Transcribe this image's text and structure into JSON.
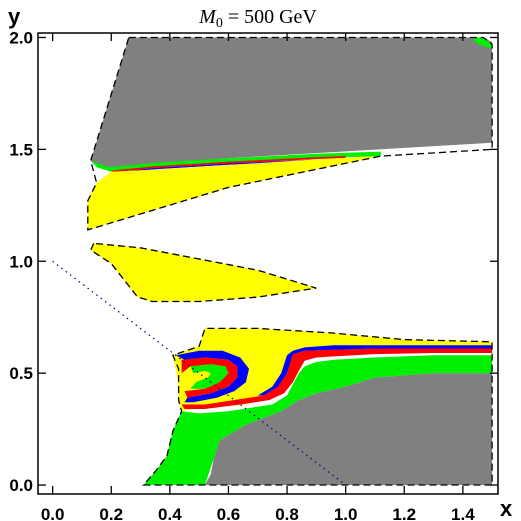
{
  "chart_data": {
    "type": "area",
    "title": "M0 = 500 GeV",
    "title_parts": {
      "symbol": "M",
      "subscript": "0",
      "rest": " = 500 GeV"
    },
    "xlabel": "x",
    "ylabel": "y",
    "xlim": [
      -0.05,
      1.52
    ],
    "ylim": [
      -0.04,
      2.02
    ],
    "x_ticks": [
      0.0,
      0.2,
      0.4,
      0.6,
      0.8,
      1.0,
      1.2,
      1.4
    ],
    "x_tick_labels": [
      "0.0",
      "0.2",
      "0.4",
      "0.6",
      "0.8",
      "1.0",
      "1.2",
      "1.4"
    ],
    "y_ticks": [
      0.0,
      0.5,
      1.0,
      1.5,
      2.0
    ],
    "y_tick_labels": [
      "0.0",
      "0.5",
      "1.0",
      "1.5",
      "2.0"
    ],
    "grid": false,
    "legend": "none",
    "colors": {
      "gray": "#808080",
      "green": "#00ee00",
      "yellow": "#ffff00",
      "red": "#ff0000",
      "blue": "#0000ff",
      "boundary": "#000000",
      "dotted": "#000080"
    },
    "regions": [
      {
        "id": "upper-gray",
        "color": "gray",
        "polygon": [
          [
            0.26,
            2.0
          ],
          [
            1.47,
            2.0
          ],
          [
            1.5,
            1.98
          ],
          [
            1.5,
            1.53
          ],
          [
            0.6,
            1.46
          ],
          [
            0.35,
            1.43
          ],
          [
            0.19,
            1.41
          ],
          [
            0.16,
            1.43
          ],
          [
            0.13,
            1.45
          ]
        ]
      },
      {
        "id": "upper-green-top-right",
        "color": "green",
        "polygon": [
          [
            1.43,
            2.0
          ],
          [
            1.47,
            2.0
          ],
          [
            1.5,
            1.97
          ],
          [
            1.5,
            1.95
          ],
          [
            1.45,
            1.97
          ]
        ]
      },
      {
        "id": "upper-green-strip",
        "color": "green",
        "polygon": [
          [
            0.13,
            1.45
          ],
          [
            0.19,
            1.42
          ],
          [
            0.35,
            1.44
          ],
          [
            0.6,
            1.46
          ],
          [
            0.9,
            1.48
          ],
          [
            1.12,
            1.49
          ],
          [
            1.12,
            1.47
          ],
          [
            0.9,
            1.46
          ],
          [
            0.6,
            1.44
          ],
          [
            0.35,
            1.42
          ],
          [
            0.2,
            1.4
          ],
          [
            0.15,
            1.42
          ]
        ]
      },
      {
        "id": "upper-red-strip",
        "color": "red",
        "polygon": [
          [
            0.2,
            1.405
          ],
          [
            0.35,
            1.425
          ],
          [
            0.6,
            1.445
          ],
          [
            0.9,
            1.465
          ],
          [
            1.0,
            1.47
          ],
          [
            1.0,
            1.462
          ],
          [
            0.9,
            1.457
          ],
          [
            0.6,
            1.437
          ],
          [
            0.35,
            1.417
          ],
          [
            0.21,
            1.397
          ]
        ]
      },
      {
        "id": "upper-blue-strip",
        "color": "blue",
        "polygon": [
          [
            0.21,
            1.397
          ],
          [
            0.35,
            1.417
          ],
          [
            0.6,
            1.437
          ],
          [
            0.9,
            1.455
          ],
          [
            0.9,
            1.449
          ],
          [
            0.6,
            1.431
          ],
          [
            0.35,
            1.411
          ],
          [
            0.22,
            1.391
          ]
        ]
      },
      {
        "id": "upper-yellow",
        "color": "yellow",
        "polygon": [
          [
            0.2,
            1.4
          ],
          [
            0.35,
            1.41
          ],
          [
            0.6,
            1.43
          ],
          [
            0.9,
            1.455
          ],
          [
            1.12,
            1.47
          ],
          [
            0.6,
            1.33
          ],
          [
            0.12,
            1.14
          ],
          [
            0.12,
            1.27
          ],
          [
            0.15,
            1.35
          ]
        ]
      },
      {
        "id": "middle-yellow",
        "color": "yellow",
        "polygon": [
          [
            0.14,
            1.08
          ],
          [
            0.13,
            1.05
          ],
          [
            0.2,
            0.99
          ],
          [
            0.29,
            0.84
          ],
          [
            0.34,
            0.82
          ],
          [
            0.5,
            0.82
          ],
          [
            0.7,
            0.84
          ],
          [
            0.9,
            0.88
          ],
          [
            0.7,
            0.96
          ],
          [
            0.3,
            1.06
          ]
        ]
      },
      {
        "id": "lower-gray",
        "color": "gray",
        "polygon": [
          [
            0.66,
            0.27
          ],
          [
            0.72,
            0.3
          ],
          [
            0.78,
            0.33
          ],
          [
            0.84,
            0.38
          ],
          [
            0.9,
            0.41
          ],
          [
            1.0,
            0.44
          ],
          [
            1.1,
            0.48
          ],
          [
            1.2,
            0.49
          ],
          [
            1.3,
            0.5
          ],
          [
            1.5,
            0.5
          ],
          [
            1.5,
            0.0
          ],
          [
            0.52,
            0.0
          ],
          [
            0.54,
            0.05
          ],
          [
            0.55,
            0.12
          ],
          [
            0.57,
            0.2
          ]
        ]
      },
      {
        "id": "lower-green",
        "color": "green",
        "polygon": [
          [
            0.31,
            0.0
          ],
          [
            0.52,
            0.0
          ],
          [
            0.55,
            0.12
          ],
          [
            0.57,
            0.2
          ],
          [
            0.66,
            0.27
          ],
          [
            0.72,
            0.3
          ],
          [
            0.78,
            0.33
          ],
          [
            0.84,
            0.38
          ],
          [
            0.9,
            0.41
          ],
          [
            1.0,
            0.44
          ],
          [
            1.1,
            0.48
          ],
          [
            1.2,
            0.49
          ],
          [
            1.3,
            0.5
          ],
          [
            1.5,
            0.5
          ],
          [
            1.5,
            0.58
          ],
          [
            1.3,
            0.58
          ],
          [
            1.1,
            0.57
          ],
          [
            0.96,
            0.56
          ],
          [
            0.9,
            0.55
          ],
          [
            0.86,
            0.53
          ],
          [
            0.84,
            0.5
          ],
          [
            0.82,
            0.45
          ],
          [
            0.8,
            0.4
          ],
          [
            0.75,
            0.36
          ],
          [
            0.6,
            0.33
          ],
          [
            0.5,
            0.32
          ],
          [
            0.44,
            0.33
          ],
          [
            0.41,
            0.24
          ],
          [
            0.39,
            0.13
          ],
          [
            0.35,
            0.06
          ]
        ]
      },
      {
        "id": "lower-yellow",
        "color": "yellow",
        "polygon": [
          [
            0.41,
            0.58
          ],
          [
            0.5,
            0.62
          ],
          [
            0.52,
            0.7
          ],
          [
            0.7,
            0.7
          ],
          [
            0.95,
            0.68
          ],
          [
            1.2,
            0.65
          ],
          [
            1.5,
            0.64
          ],
          [
            1.5,
            0.62
          ],
          [
            1.3,
            0.62
          ],
          [
            1.1,
            0.61
          ],
          [
            0.96,
            0.6
          ],
          [
            0.9,
            0.6
          ],
          [
            0.86,
            0.58
          ],
          [
            0.84,
            0.55
          ],
          [
            0.82,
            0.5
          ],
          [
            0.8,
            0.45
          ],
          [
            0.76,
            0.4
          ],
          [
            0.66,
            0.36
          ],
          [
            0.56,
            0.35
          ],
          [
            0.48,
            0.34
          ],
          [
            0.44,
            0.33
          ],
          [
            0.43,
            0.38
          ],
          [
            0.43,
            0.45
          ],
          [
            0.42,
            0.52
          ]
        ]
      },
      {
        "id": "lower-red-band",
        "color": "red",
        "polygon": [
          [
            0.82,
            0.585
          ],
          [
            0.86,
            0.6
          ],
          [
            0.96,
            0.605
          ],
          [
            1.1,
            0.61
          ],
          [
            1.3,
            0.61
          ],
          [
            1.5,
            0.61
          ],
          [
            1.5,
            0.59
          ],
          [
            1.3,
            0.59
          ],
          [
            1.1,
            0.585
          ],
          [
            0.96,
            0.575
          ],
          [
            0.9,
            0.57
          ],
          [
            0.86,
            0.555
          ],
          [
            0.84,
            0.51
          ],
          [
            0.82,
            0.46
          ],
          [
            0.79,
            0.41
          ],
          [
            0.74,
            0.38
          ],
          [
            0.64,
            0.36
          ],
          [
            0.52,
            0.34
          ],
          [
            0.45,
            0.34
          ],
          [
            0.44,
            0.36
          ],
          [
            0.52,
            0.36
          ],
          [
            0.62,
            0.38
          ],
          [
            0.72,
            0.4
          ],
          [
            0.77,
            0.44
          ],
          [
            0.8,
            0.5
          ]
        ]
      },
      {
        "id": "lower-blue-band",
        "color": "blue",
        "polygon": [
          [
            0.8,
            0.58
          ],
          [
            0.82,
            0.6
          ],
          [
            0.86,
            0.615
          ],
          [
            0.96,
            0.625
          ],
          [
            1.1,
            0.625
          ],
          [
            1.3,
            0.625
          ],
          [
            1.5,
            0.625
          ],
          [
            1.5,
            0.61
          ],
          [
            1.3,
            0.61
          ],
          [
            1.1,
            0.61
          ],
          [
            0.96,
            0.605
          ],
          [
            0.86,
            0.6
          ],
          [
            0.82,
            0.585
          ],
          [
            0.8,
            0.5
          ],
          [
            0.77,
            0.44
          ],
          [
            0.72,
            0.4
          ],
          [
            0.7,
            0.4
          ],
          [
            0.75,
            0.44
          ],
          [
            0.78,
            0.5
          ]
        ]
      },
      {
        "id": "crescent-blue",
        "color": "blue",
        "polygon": [
          [
            0.42,
            0.58
          ],
          [
            0.5,
            0.6
          ],
          [
            0.58,
            0.6
          ],
          [
            0.64,
            0.57
          ],
          [
            0.67,
            0.52
          ],
          [
            0.66,
            0.46
          ],
          [
            0.62,
            0.42
          ],
          [
            0.56,
            0.39
          ],
          [
            0.48,
            0.37
          ],
          [
            0.45,
            0.37
          ],
          [
            0.46,
            0.39
          ],
          [
            0.54,
            0.41
          ],
          [
            0.6,
            0.44
          ],
          [
            0.63,
            0.48
          ],
          [
            0.63,
            0.53
          ],
          [
            0.6,
            0.56
          ],
          [
            0.52,
            0.57
          ],
          [
            0.45,
            0.56
          ]
        ]
      },
      {
        "id": "crescent-red",
        "color": "red",
        "polygon": [
          [
            0.44,
            0.56
          ],
          [
            0.52,
            0.57
          ],
          [
            0.6,
            0.56
          ],
          [
            0.63,
            0.53
          ],
          [
            0.63,
            0.48
          ],
          [
            0.6,
            0.44
          ],
          [
            0.54,
            0.41
          ],
          [
            0.46,
            0.39
          ],
          [
            0.45,
            0.42
          ],
          [
            0.52,
            0.43
          ],
          [
            0.57,
            0.46
          ],
          [
            0.6,
            0.5
          ],
          [
            0.59,
            0.53
          ],
          [
            0.54,
            0.54
          ],
          [
            0.47,
            0.53
          ],
          [
            0.44,
            0.5
          ]
        ]
      },
      {
        "id": "crescent-green",
        "color": "green",
        "polygon": [
          [
            0.47,
            0.53
          ],
          [
            0.54,
            0.54
          ],
          [
            0.59,
            0.53
          ],
          [
            0.6,
            0.5
          ],
          [
            0.57,
            0.46
          ],
          [
            0.52,
            0.43
          ],
          [
            0.47,
            0.43
          ],
          [
            0.49,
            0.46
          ],
          [
            0.53,
            0.48
          ],
          [
            0.54,
            0.5
          ],
          [
            0.52,
            0.51
          ],
          [
            0.48,
            0.5
          ]
        ]
      }
    ],
    "boundaries": [
      {
        "id": "upper-boundary",
        "closed": true,
        "points": [
          [
            0.26,
            2.0
          ],
          [
            1.47,
            2.0
          ],
          [
            1.5,
            1.97
          ],
          [
            1.5,
            1.5
          ],
          [
            1.12,
            1.47
          ],
          [
            0.6,
            1.33
          ],
          [
            0.12,
            1.14
          ],
          [
            0.12,
            1.27
          ],
          [
            0.15,
            1.35
          ],
          [
            0.13,
            1.45
          ]
        ]
      },
      {
        "id": "middle-boundary",
        "closed": true,
        "points": [
          [
            0.14,
            1.08
          ],
          [
            0.13,
            1.05
          ],
          [
            0.2,
            0.99
          ],
          [
            0.29,
            0.84
          ],
          [
            0.34,
            0.82
          ],
          [
            0.5,
            0.82
          ],
          [
            0.7,
            0.84
          ],
          [
            0.9,
            0.88
          ],
          [
            0.7,
            0.96
          ],
          [
            0.3,
            1.06
          ],
          [
            0.14,
            1.08
          ]
        ]
      },
      {
        "id": "lower-boundary",
        "closed": true,
        "points": [
          [
            0.31,
            0.0
          ],
          [
            1.5,
            0.0
          ],
          [
            1.5,
            0.64
          ],
          [
            1.2,
            0.65
          ],
          [
            0.95,
            0.68
          ],
          [
            0.7,
            0.7
          ],
          [
            0.52,
            0.7
          ],
          [
            0.5,
            0.62
          ],
          [
            0.41,
            0.58
          ],
          [
            0.43,
            0.52
          ],
          [
            0.43,
            0.38
          ],
          [
            0.44,
            0.33
          ],
          [
            0.41,
            0.24
          ],
          [
            0.39,
            0.13
          ],
          [
            0.35,
            0.06
          ],
          [
            0.31,
            0.0
          ]
        ]
      }
    ],
    "reference_line": {
      "style": "dotted",
      "points": [
        [
          0.0,
          1.0
        ],
        [
          1.0,
          0.0
        ]
      ]
    }
  }
}
